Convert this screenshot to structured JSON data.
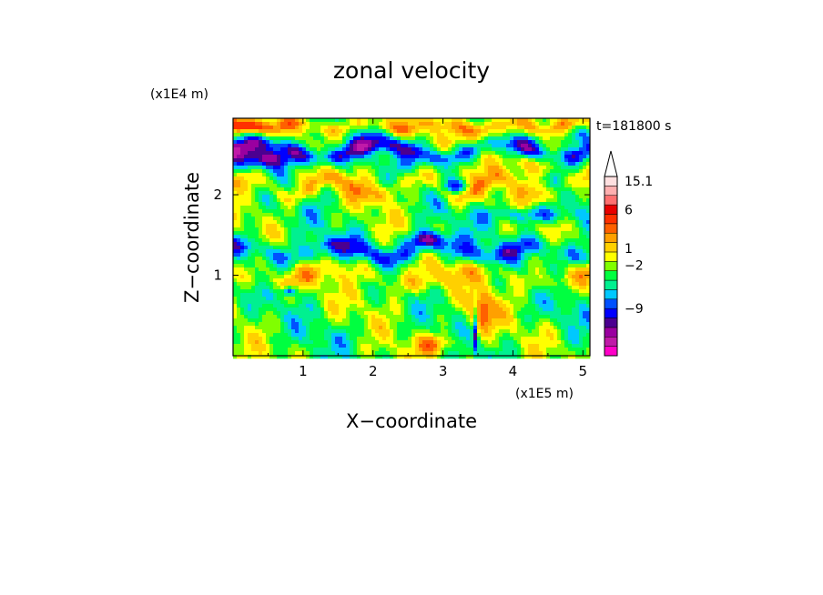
{
  "chart_data": {
    "type": "heatmap",
    "title": "zonal velocity",
    "xlabel": "X−coordinate",
    "ylabel": "Z−coordinate",
    "x_scale_label": "(x1E5 m)",
    "y_scale_label": "(x1E4 m)",
    "time_label": "t=181800 s",
    "xlim": [
      0,
      5.1
    ],
    "ylim": [
      0,
      2.95
    ],
    "x_ticks": [
      1,
      2,
      3,
      4,
      5
    ],
    "x_tick_labels": [
      "1",
      "2",
      "3",
      "4",
      "5"
    ],
    "y_ticks": [
      1,
      2
    ],
    "y_tick_labels": [
      "1",
      "2"
    ],
    "colorbar": {
      "colors": [
        "#ff00c8",
        "#c01aa8",
        "#9a00a0",
        "#4b0090",
        "#0000ff",
        "#0050ff",
        "#00c8ff",
        "#00f090",
        "#00ff40",
        "#80ff00",
        "#ffff00",
        "#ffd000",
        "#ffa000",
        "#ff6000",
        "#ff3000",
        "#e80000",
        "#ff7070",
        "#ffb0b0",
        "#ffe0e0"
      ],
      "labels": [
        {
          "text": "15.1",
          "index": 18.5
        },
        {
          "text": "6",
          "index": 15.5
        },
        {
          "text": "1",
          "index": 11.4
        },
        {
          "text": "−2",
          "index": 9.6
        },
        {
          "text": "−9",
          "index": 5.0
        }
      ]
    },
    "pattern": {
      "layers": [
        {
          "z": 2.55,
          "amp": 0.1,
          "wl": 1.7,
          "phase": 0.0,
          "w": 0.12,
          "v": -7
        },
        {
          "z": 1.3,
          "amp": 0.08,
          "wl": 1.4,
          "phase": 1.1,
          "w": 0.13,
          "v": -5
        },
        {
          "z": 2.85,
          "amp": 0.05,
          "wl": 1.0,
          "phase": 2.0,
          "w": 0.1,
          "v": 4
        },
        {
          "z": 2.1,
          "amp": 0.12,
          "wl": 1.2,
          "phase": 0.4,
          "w": 0.12,
          "v": 4
        },
        {
          "z": 1.0,
          "amp": 0.1,
          "wl": 1.9,
          "phase": 2.5,
          "w": 0.14,
          "v": 3
        }
      ],
      "blobs": [
        {
          "x": 0.5,
          "z": 2.45,
          "sx": 0.35,
          "sz": 0.12,
          "v": -9
        },
        {
          "x": 2.75,
          "z": 1.45,
          "sx": 0.28,
          "sz": 0.1,
          "v": -8
        },
        {
          "x": 3.2,
          "z": 2.1,
          "sx": 0.2,
          "sz": 0.08,
          "v": -7
        },
        {
          "x": 4.2,
          "z": 1.75,
          "sx": 0.6,
          "sz": 0.1,
          "v": -6
        },
        {
          "x": 3.6,
          "z": 2.7,
          "sx": 0.3,
          "sz": 0.2,
          "v": 7
        },
        {
          "x": 4.3,
          "z": 2.4,
          "sx": 0.4,
          "sz": 0.15,
          "v": 7
        },
        {
          "x": 2.4,
          "z": 0.85,
          "sx": 0.5,
          "sz": 0.35,
          "v": 1
        },
        {
          "x": 3.55,
          "z": 0.55,
          "sx": 0.18,
          "sz": 0.25,
          "v": 8
        },
        {
          "x": 3.47,
          "z": 0.35,
          "sx": 0.03,
          "sz": 0.3,
          "v": -9
        },
        {
          "x": 0.2,
          "z": 2.85,
          "sx": 0.25,
          "sz": 0.08,
          "v": 7
        },
        {
          "x": 4.9,
          "z": 2.75,
          "sx": 0.2,
          "sz": 0.15,
          "v": -7
        },
        {
          "x": 0.8,
          "z": 0.8,
          "sx": 0.1,
          "sz": 0.06,
          "v": -8
        },
        {
          "x": 2.9,
          "z": 0.15,
          "sx": 0.3,
          "sz": 0.12,
          "v": 6
        },
        {
          "x": 1.6,
          "z": 0.25,
          "sx": 0.5,
          "sz": 0.1,
          "v": -1
        },
        {
          "x": 4.6,
          "z": 0.5,
          "sx": 0.4,
          "sz": 0.15,
          "v": -1
        }
      ]
    }
  }
}
